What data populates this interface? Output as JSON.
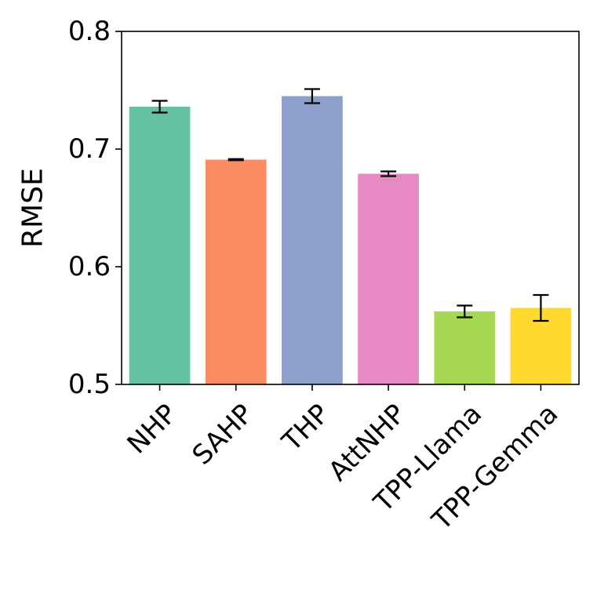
{
  "chart_data": {
    "type": "bar",
    "ylabel": "RMSE",
    "xlabel": "",
    "ylim": [
      0.5,
      0.8
    ],
    "yticks": [
      0.5,
      0.6,
      0.7,
      0.8
    ],
    "ytick_labels": [
      "0.5",
      "0.6",
      "0.7",
      "0.8"
    ],
    "grid": false,
    "categories": [
      "NHP",
      "SAHP",
      "THP",
      "AttNHP",
      "TPP-Llama",
      "TPP-Gemma"
    ],
    "values": [
      0.736,
      0.691,
      0.745,
      0.679,
      0.562,
      0.565
    ],
    "errors": [
      0.005,
      0.0005,
      0.006,
      0.002,
      0.005,
      0.011
    ],
    "colors": [
      "#66c2a5",
      "#fc8d62",
      "#8da0cb",
      "#e78ac3",
      "#a6d854",
      "#ffd92f"
    ]
  }
}
